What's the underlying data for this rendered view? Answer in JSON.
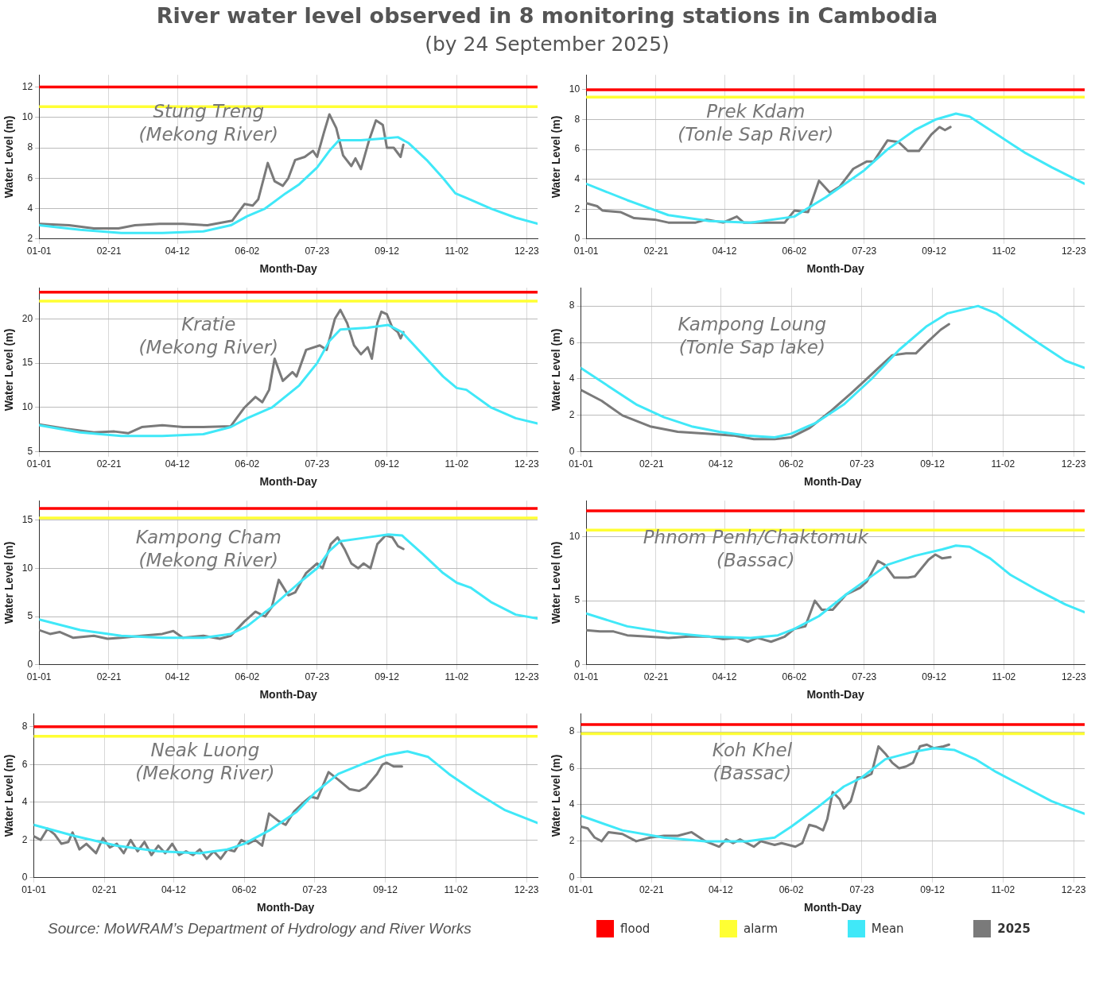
{
  "chart_data": [
    {
      "type": "other",
      "title": "River water level observed in 8 monitoring stations in Cambodia",
      "subtitle": "(by 24 September 2025)"
    },
    {
      "type": "line",
      "title": "Stung Treng\n(Mekong River)",
      "xlabel": "Month-Day",
      "ylabel": "Water Level (m)",
      "xlim": [
        "2025-01-01",
        "2025-12-31"
      ],
      "xticks": [
        {
          "value": "2025-01-01",
          "label": "01-01"
        },
        {
          "value": "2025-02-21",
          "label": "02-21"
        },
        {
          "value": "2025-04-12",
          "label": "04-12"
        },
        {
          "value": "2025-06-02",
          "label": "06-02"
        },
        {
          "value": "2025-07-23",
          "label": "07-23"
        },
        {
          "value": "2025-09-12",
          "label": "09-12"
        },
        {
          "value": "2025-11-02",
          "label": "11-02"
        },
        {
          "value": "2025-12-23",
          "label": "12-23"
        }
      ],
      "ylim": [
        2,
        12.8
      ],
      "yticks": [
        2,
        4,
        6,
        8,
        10,
        12
      ],
      "grid": true,
      "marker": "none",
      "line_style": "solid",
      "ref_lines": [
        {
          "axis": "y",
          "value": 12,
          "color": "#ff0000"
        },
        {
          "axis": "y",
          "value": 10.7,
          "color": "#ffff33"
        }
      ],
      "series": [
        {
          "color": "#40e8f8",
          "x": [
            "2025-01-01",
            "2025-01-31",
            "2025-03-02",
            "2025-04-01",
            "2025-05-01",
            "2025-05-21",
            "2025-06-02",
            "2025-06-15",
            "2025-06-30",
            "2025-07-10",
            "2025-07-23",
            "2025-08-01",
            "2025-08-08",
            "2025-08-24",
            "2025-09-08",
            "2025-09-20",
            "2025-09-28",
            "2025-10-11",
            "2025-10-23",
            "2025-11-01",
            "2025-11-09",
            "2025-11-27",
            "2025-12-15",
            "2025-12-31"
          ],
          "values": [
            2.9,
            2.6,
            2.4,
            2.4,
            2.5,
            2.9,
            3.5,
            4.0,
            5.0,
            5.6,
            6.7,
            7.8,
            8.5,
            8.5,
            8.6,
            8.7,
            8.3,
            7.2,
            6.0,
            5.0,
            4.7,
            4.0,
            3.4,
            3.0
          ]
        },
        {
          "color": "#7a7a7a",
          "x": [
            "2025-01-01",
            "2025-01-23",
            "2025-02-10",
            "2025-02-28",
            "2025-03-12",
            "2025-03-30",
            "2025-04-16",
            "2025-05-04",
            "2025-05-22",
            "2025-05-31",
            "2025-06-06",
            "2025-06-10",
            "2025-06-17",
            "2025-06-22",
            "2025-06-28",
            "2025-07-02",
            "2025-07-07",
            "2025-07-14",
            "2025-07-20",
            "2025-07-23",
            "2025-07-28",
            "2025-08-01",
            "2025-08-06",
            "2025-08-11",
            "2025-08-17",
            "2025-08-20",
            "2025-08-24",
            "2025-08-30",
            "2025-09-04",
            "2025-09-09",
            "2025-09-12",
            "2025-09-17",
            "2025-09-22",
            "2025-09-24"
          ],
          "values": [
            3.0,
            2.9,
            2.7,
            2.7,
            2.9,
            3.0,
            3.0,
            2.9,
            3.2,
            4.3,
            4.2,
            4.6,
            7.0,
            5.8,
            5.5,
            6.0,
            7.2,
            7.4,
            7.8,
            7.4,
            9.0,
            10.2,
            9.3,
            7.5,
            6.8,
            7.3,
            6.6,
            8.5,
            9.8,
            9.5,
            8.0,
            8.0,
            7.4,
            8.2
          ]
        }
      ]
    },
    {
      "type": "line",
      "title": "Prek Kdam\n(Tonle Sap River)",
      "xlabel": "Month-Day",
      "ylabel": "Water Level (m)",
      "xlim": [
        "2025-01-01",
        "2025-12-31"
      ],
      "xticks": [
        {
          "value": "2025-01-01",
          "label": "01-01"
        },
        {
          "value": "2025-02-21",
          "label": "02-21"
        },
        {
          "value": "2025-04-12",
          "label": "04-12"
        },
        {
          "value": "2025-06-02",
          "label": "06-02"
        },
        {
          "value": "2025-07-23",
          "label": "07-23"
        },
        {
          "value": "2025-09-12",
          "label": "09-12"
        },
        {
          "value": "2025-11-02",
          "label": "11-02"
        },
        {
          "value": "2025-12-23",
          "label": "12-23"
        }
      ],
      "ylim": [
        0,
        11
      ],
      "yticks": [
        0,
        2,
        4,
        6,
        8,
        10
      ],
      "grid": true,
      "marker": "none",
      "line_style": "solid",
      "ref_lines": [
        {
          "axis": "y",
          "value": 10,
          "color": "#ff0000"
        },
        {
          "axis": "y",
          "value": 9.5,
          "color": "#ffff33"
        }
      ],
      "series": [
        {
          "color": "#40e8f8",
          "x": [
            "2025-01-01",
            "2025-01-31",
            "2025-03-02",
            "2025-04-01",
            "2025-05-01",
            "2025-06-02",
            "2025-06-25",
            "2025-07-23",
            "2025-08-09",
            "2025-08-29",
            "2025-09-13",
            "2025-09-28",
            "2025-10-08",
            "2025-10-28",
            "2025-11-17",
            "2025-12-07",
            "2025-12-31"
          ],
          "values": [
            3.7,
            2.6,
            1.6,
            1.2,
            1.1,
            1.5,
            2.8,
            4.6,
            6.0,
            7.3,
            8.0,
            8.4,
            8.2,
            7.0,
            5.8,
            4.8,
            3.7
          ]
        },
        {
          "color": "#7a7a7a",
          "x": [
            "2025-01-01",
            "2025-01-09",
            "2025-01-13",
            "2025-01-26",
            "2025-02-05",
            "2025-02-20",
            "2025-03-02",
            "2025-03-22",
            "2025-03-30",
            "2025-04-11",
            "2025-04-21",
            "2025-04-26",
            "2025-05-11",
            "2025-05-26",
            "2025-06-02",
            "2025-06-12",
            "2025-06-20",
            "2025-06-28",
            "2025-07-05",
            "2025-07-15",
            "2025-07-25",
            "2025-07-30",
            "2025-08-09",
            "2025-08-17",
            "2025-08-24",
            "2025-09-01",
            "2025-09-10",
            "2025-09-16",
            "2025-09-20",
            "2025-09-24"
          ],
          "values": [
            2.4,
            2.2,
            1.9,
            1.8,
            1.4,
            1.3,
            1.1,
            1.1,
            1.3,
            1.1,
            1.5,
            1.1,
            1.1,
            1.1,
            1.9,
            1.8,
            3.9,
            3.1,
            3.5,
            4.7,
            5.2,
            5.2,
            6.6,
            6.5,
            5.9,
            5.9,
            7.0,
            7.5,
            7.3,
            7.5
          ]
        }
      ]
    },
    {
      "type": "line",
      "title": "Kratie\n(Mekong River)",
      "xlabel": "Month-Day",
      "ylabel": "Water Level (m)",
      "xlim": [
        "2025-01-01",
        "2025-12-31"
      ],
      "xticks": [
        {
          "value": "2025-01-01",
          "label": "01-01"
        },
        {
          "value": "2025-02-21",
          "label": "02-21"
        },
        {
          "value": "2025-04-12",
          "label": "04-12"
        },
        {
          "value": "2025-06-02",
          "label": "06-02"
        },
        {
          "value": "2025-07-23",
          "label": "07-23"
        },
        {
          "value": "2025-09-12",
          "label": "09-12"
        },
        {
          "value": "2025-11-02",
          "label": "11-02"
        },
        {
          "value": "2025-12-23",
          "label": "12-23"
        }
      ],
      "ylim": [
        5,
        23.5
      ],
      "yticks": [
        5,
        10,
        15,
        20
      ],
      "grid": true,
      "marker": "none",
      "line_style": "solid",
      "ref_lines": [
        {
          "axis": "y",
          "value": 23,
          "color": "#ff0000"
        },
        {
          "axis": "y",
          "value": 22,
          "color": "#ffff33"
        }
      ],
      "series": [
        {
          "color": "#40e8f8",
          "x": [
            "2025-01-01",
            "2025-01-31",
            "2025-03-02",
            "2025-04-01",
            "2025-05-01",
            "2025-05-21",
            "2025-06-02",
            "2025-06-20",
            "2025-07-10",
            "2025-07-23",
            "2025-08-01",
            "2025-08-09",
            "2025-08-29",
            "2025-09-13",
            "2025-09-23",
            "2025-10-08",
            "2025-10-23",
            "2025-11-02",
            "2025-11-09",
            "2025-11-27",
            "2025-12-15",
            "2025-12-31"
          ],
          "values": [
            8.0,
            7.2,
            6.8,
            6.8,
            7.0,
            7.8,
            8.8,
            10.0,
            12.5,
            15.0,
            17.5,
            18.8,
            19.0,
            19.3,
            18.5,
            16.0,
            13.5,
            12.2,
            12.0,
            10.0,
            8.8,
            8.2
          ]
        },
        {
          "color": "#7a7a7a",
          "x": [
            "2025-01-01",
            "2025-01-21",
            "2025-02-10",
            "2025-02-25",
            "2025-03-07",
            "2025-03-17",
            "2025-04-01",
            "2025-04-16",
            "2025-05-01",
            "2025-05-21",
            "2025-05-31",
            "2025-06-08",
            "2025-06-13",
            "2025-06-18",
            "2025-06-22",
            "2025-06-28",
            "2025-07-05",
            "2025-07-08",
            "2025-07-15",
            "2025-07-25",
            "2025-07-30",
            "2025-08-05",
            "2025-08-09",
            "2025-08-14",
            "2025-08-19",
            "2025-08-24",
            "2025-08-29",
            "2025-09-01",
            "2025-09-05",
            "2025-09-08",
            "2025-09-12",
            "2025-09-16",
            "2025-09-20",
            "2025-09-22",
            "2025-09-24"
          ],
          "values": [
            8.1,
            7.6,
            7.2,
            7.3,
            7.1,
            7.8,
            8.0,
            7.8,
            7.8,
            7.9,
            10.0,
            11.2,
            10.6,
            12.0,
            15.5,
            13.0,
            14.0,
            13.5,
            16.5,
            17.0,
            16.5,
            20.0,
            21.0,
            19.5,
            17.0,
            16.0,
            16.8,
            15.5,
            19.5,
            20.8,
            20.5,
            19.0,
            18.5,
            17.8,
            18.5
          ]
        }
      ]
    },
    {
      "type": "line",
      "title": "Kampong Loung\n(Tonle Sap lake)",
      "xlabel": "Month-Day",
      "ylabel": "Water Level (m)",
      "xlim": [
        "2025-01-01",
        "2025-12-31"
      ],
      "xticks": [
        {
          "value": "2025-01-01",
          "label": "01-01"
        },
        {
          "value": "2025-02-21",
          "label": "02-21"
        },
        {
          "value": "2025-04-12",
          "label": "04-12"
        },
        {
          "value": "2025-06-02",
          "label": "06-02"
        },
        {
          "value": "2025-07-23",
          "label": "07-23"
        },
        {
          "value": "2025-09-12",
          "label": "09-12"
        },
        {
          "value": "2025-11-02",
          "label": "11-02"
        },
        {
          "value": "2025-12-23",
          "label": "12-23"
        }
      ],
      "ylim": [
        0,
        9
      ],
      "yticks": [
        0,
        2,
        4,
        6,
        8
      ],
      "grid": true,
      "marker": "none",
      "line_style": "solid",
      "series": [
        {
          "color": "#40e8f8",
          "x": [
            "2025-01-01",
            "2025-01-21",
            "2025-02-10",
            "2025-03-02",
            "2025-03-22",
            "2025-04-11",
            "2025-05-01",
            "2025-05-21",
            "2025-06-02",
            "2025-06-20",
            "2025-07-10",
            "2025-07-30",
            "2025-08-19",
            "2025-09-08",
            "2025-09-23",
            "2025-10-15",
            "2025-10-28",
            "2025-11-12",
            "2025-11-27",
            "2025-12-17",
            "2025-12-31"
          ],
          "values": [
            4.6,
            3.6,
            2.6,
            1.9,
            1.4,
            1.1,
            0.9,
            0.8,
            1.0,
            1.6,
            2.6,
            4.0,
            5.6,
            6.9,
            7.6,
            8.0,
            7.6,
            6.8,
            6.0,
            5.0,
            4.6
          ]
        },
        {
          "color": "#7a7a7a",
          "x": [
            "2025-01-01",
            "2025-01-16",
            "2025-01-31",
            "2025-02-20",
            "2025-03-12",
            "2025-04-01",
            "2025-04-21",
            "2025-05-06",
            "2025-05-21",
            "2025-06-02",
            "2025-06-15",
            "2025-06-30",
            "2025-07-15",
            "2025-07-25",
            "2025-08-04",
            "2025-08-14",
            "2025-08-24",
            "2025-08-31",
            "2025-09-08",
            "2025-09-18",
            "2025-09-24"
          ],
          "values": [
            3.4,
            2.8,
            2.0,
            1.4,
            1.1,
            1.0,
            0.9,
            0.7,
            0.7,
            0.8,
            1.3,
            2.2,
            3.2,
            3.9,
            4.6,
            5.3,
            5.4,
            5.4,
            6.0,
            6.7,
            7.0
          ]
        }
      ]
    },
    {
      "type": "line",
      "title": "Kampong Cham\n(Mekong River)",
      "xlabel": "Month-Day",
      "ylabel": "Water Level (m)",
      "xlim": [
        "2025-01-01",
        "2025-12-31"
      ],
      "xticks": [
        {
          "value": "2025-01-01",
          "label": "01-01"
        },
        {
          "value": "2025-02-21",
          "label": "02-21"
        },
        {
          "value": "2025-04-12",
          "label": "04-12"
        },
        {
          "value": "2025-06-02",
          "label": "06-02"
        },
        {
          "value": "2025-07-23",
          "label": "07-23"
        },
        {
          "value": "2025-09-12",
          "label": "09-12"
        },
        {
          "value": "2025-11-02",
          "label": "11-02"
        },
        {
          "value": "2025-12-23",
          "label": "12-23"
        }
      ],
      "ylim": [
        0,
        17
      ],
      "yticks": [
        0,
        5,
        10,
        15
      ],
      "grid": true,
      "marker": "none",
      "line_style": "solid",
      "ref_lines": [
        {
          "axis": "y",
          "value": 16.2,
          "color": "#ff0000"
        },
        {
          "axis": "y",
          "value": 15.2,
          "color": "#ffff33"
        }
      ],
      "series": [
        {
          "color": "#40e8f8",
          "x": [
            "2025-01-01",
            "2025-01-31",
            "2025-03-02",
            "2025-04-01",
            "2025-05-01",
            "2025-05-21",
            "2025-06-02",
            "2025-06-20",
            "2025-07-10",
            "2025-07-23",
            "2025-08-01",
            "2025-08-09",
            "2025-08-29",
            "2025-09-13",
            "2025-09-23",
            "2025-10-08",
            "2025-10-23",
            "2025-11-02",
            "2025-11-12",
            "2025-11-27",
            "2025-12-15",
            "2025-12-31"
          ],
          "values": [
            4.7,
            3.6,
            3.0,
            2.8,
            2.8,
            3.2,
            4.0,
            6.0,
            8.5,
            10.0,
            11.8,
            12.8,
            13.2,
            13.5,
            13.4,
            11.5,
            9.5,
            8.5,
            8.0,
            6.5,
            5.2,
            4.8
          ]
        },
        {
          "color": "#7a7a7a",
          "x": [
            "2025-01-01",
            "2025-01-09",
            "2025-01-16",
            "2025-01-26",
            "2025-02-10",
            "2025-02-20",
            "2025-03-02",
            "2025-03-17",
            "2025-04-01",
            "2025-04-09",
            "2025-04-16",
            "2025-05-01",
            "2025-05-13",
            "2025-05-21",
            "2025-05-31",
            "2025-06-08",
            "2025-06-15",
            "2025-06-20",
            "2025-06-25",
            "2025-07-02",
            "2025-07-07",
            "2025-07-15",
            "2025-07-23",
            "2025-07-27",
            "2025-08-02",
            "2025-08-07",
            "2025-08-12",
            "2025-08-17",
            "2025-08-22",
            "2025-08-26",
            "2025-08-31",
            "2025-09-05",
            "2025-09-11",
            "2025-09-16",
            "2025-09-20",
            "2025-09-24"
          ],
          "values": [
            3.6,
            3.2,
            3.4,
            2.8,
            3.0,
            2.7,
            2.8,
            3.0,
            3.2,
            3.5,
            2.8,
            3.0,
            2.7,
            3.0,
            4.5,
            5.5,
            5.0,
            6.0,
            8.8,
            7.2,
            7.5,
            9.5,
            10.5,
            10.0,
            12.5,
            13.2,
            12.0,
            10.5,
            10.0,
            10.5,
            10.0,
            12.5,
            13.4,
            13.2,
            12.3,
            12.0
          ]
        }
      ]
    },
    {
      "type": "line",
      "title": "Phnom Penh/Chaktomuk\n(Bassac)",
      "xlabel": "Month-Day",
      "ylabel": "Water Level (m)",
      "xlim": [
        "2025-01-01",
        "2025-12-31"
      ],
      "xticks": [
        {
          "value": "2025-01-01",
          "label": "01-01"
        },
        {
          "value": "2025-02-21",
          "label": "02-21"
        },
        {
          "value": "2025-04-12",
          "label": "04-12"
        },
        {
          "value": "2025-06-02",
          "label": "06-02"
        },
        {
          "value": "2025-07-23",
          "label": "07-23"
        },
        {
          "value": "2025-09-12",
          "label": "09-12"
        },
        {
          "value": "2025-11-02",
          "label": "11-02"
        },
        {
          "value": "2025-12-23",
          "label": "12-23"
        }
      ],
      "ylim": [
        0,
        12.8
      ],
      "yticks": [
        0,
        5,
        10
      ],
      "grid": true,
      "marker": "none",
      "line_style": "solid",
      "ref_lines": [
        {
          "axis": "y",
          "value": 12,
          "color": "#ff0000"
        },
        {
          "axis": "y",
          "value": 10.5,
          "color": "#ffff33"
        }
      ],
      "series": [
        {
          "color": "#40e8f8",
          "x": [
            "2025-01-01",
            "2025-01-31",
            "2025-03-02",
            "2025-04-01",
            "2025-05-01",
            "2025-05-21",
            "2025-06-02",
            "2025-06-20",
            "2025-07-10",
            "2025-07-23",
            "2025-08-09",
            "2025-08-29",
            "2025-09-18",
            "2025-09-28",
            "2025-10-08",
            "2025-10-23",
            "2025-11-07",
            "2025-11-27",
            "2025-12-17",
            "2025-12-31"
          ],
          "values": [
            4.0,
            3.0,
            2.5,
            2.2,
            2.1,
            2.3,
            2.8,
            3.8,
            5.5,
            6.5,
            7.8,
            8.5,
            9.0,
            9.3,
            9.2,
            8.3,
            7.0,
            5.8,
            4.7,
            4.1
          ]
        },
        {
          "color": "#7a7a7a",
          "x": [
            "2025-01-01",
            "2025-01-11",
            "2025-01-21",
            "2025-01-31",
            "2025-02-15",
            "2025-03-02",
            "2025-03-17",
            "2025-04-01",
            "2025-04-11",
            "2025-04-21",
            "2025-04-29",
            "2025-05-06",
            "2025-05-16",
            "2025-05-26",
            "2025-06-02",
            "2025-06-10",
            "2025-06-17",
            "2025-06-22",
            "2025-06-30",
            "2025-07-10",
            "2025-07-20",
            "2025-07-25",
            "2025-08-02",
            "2025-08-07",
            "2025-08-14",
            "2025-08-24",
            "2025-08-29",
            "2025-09-08",
            "2025-09-13",
            "2025-09-18",
            "2025-09-24"
          ],
          "values": [
            2.7,
            2.6,
            2.6,
            2.3,
            2.2,
            2.1,
            2.2,
            2.2,
            2.0,
            2.1,
            1.8,
            2.1,
            1.8,
            2.2,
            2.8,
            3.0,
            5.0,
            4.3,
            4.3,
            5.5,
            6.0,
            6.5,
            8.1,
            7.8,
            6.8,
            6.8,
            6.9,
            8.2,
            8.6,
            8.3,
            8.4
          ]
        }
      ]
    },
    {
      "type": "line",
      "title": "Neak Luong\n(Mekong River)",
      "xlabel": "Month-Day",
      "ylabel": "Water Level (m)",
      "annotations": [
        "Source: MoWRAM’s Department of Hydrology and River Works"
      ],
      "xlim": [
        "2025-01-01",
        "2025-12-31"
      ],
      "xticks": [
        {
          "value": "2025-01-01",
          "label": "01-01"
        },
        {
          "value": "2025-02-21",
          "label": "02-21"
        },
        {
          "value": "2025-04-12",
          "label": "04-12"
        },
        {
          "value": "2025-06-02",
          "label": "06-02"
        },
        {
          "value": "2025-07-23",
          "label": "07-23"
        },
        {
          "value": "2025-09-12",
          "label": "09-12"
        },
        {
          "value": "2025-11-02",
          "label": "11-02"
        },
        {
          "value": "2025-12-23",
          "label": "12-23"
        }
      ],
      "ylim": [
        0,
        8.7
      ],
      "yticks": [
        0,
        2,
        4,
        6,
        8
      ],
      "grid": true,
      "marker": "none",
      "line_style": "solid",
      "ref_lines": [
        {
          "axis": "y",
          "value": 8,
          "color": "#ff0000"
        },
        {
          "axis": "y",
          "value": 7.5,
          "color": "#ffff33"
        }
      ],
      "series": [
        {
          "color": "#40e8f8",
          "x": [
            "2025-01-01",
            "2025-01-31",
            "2025-03-02",
            "2025-04-01",
            "2025-05-01",
            "2025-05-21",
            "2025-06-02",
            "2025-06-20",
            "2025-07-10",
            "2025-07-23",
            "2025-08-09",
            "2025-08-29",
            "2025-09-13",
            "2025-09-28",
            "2025-10-13",
            "2025-10-28",
            "2025-11-17",
            "2025-12-07",
            "2025-12-31"
          ],
          "values": [
            2.8,
            2.2,
            1.7,
            1.4,
            1.3,
            1.5,
            1.8,
            2.5,
            3.5,
            4.5,
            5.5,
            6.1,
            6.5,
            6.7,
            6.4,
            5.5,
            4.5,
            3.6,
            2.9
          ]
        },
        {
          "color": "#7a7a7a",
          "x": [
            "2025-01-01",
            "2025-01-06",
            "2025-01-11",
            "2025-01-16",
            "2025-01-21",
            "2025-01-26",
            "2025-01-29",
            "2025-02-03",
            "2025-02-08",
            "2025-02-15",
            "2025-02-20",
            "2025-02-25",
            "2025-03-02",
            "2025-03-07",
            "2025-03-12",
            "2025-03-17",
            "2025-03-22",
            "2025-03-27",
            "2025-04-01",
            "2025-04-06",
            "2025-04-11",
            "2025-04-16",
            "2025-04-21",
            "2025-04-26",
            "2025-05-01",
            "2025-05-06",
            "2025-05-11",
            "2025-05-16",
            "2025-05-21",
            "2025-05-26",
            "2025-05-31",
            "2025-06-05",
            "2025-06-10",
            "2025-06-15",
            "2025-06-20",
            "2025-06-27",
            "2025-07-02",
            "2025-07-08",
            "2025-07-15",
            "2025-07-20",
            "2025-07-25",
            "2025-08-02",
            "2025-08-09",
            "2025-08-17",
            "2025-08-24",
            "2025-08-29",
            "2025-09-06",
            "2025-09-10",
            "2025-09-13",
            "2025-09-18",
            "2025-09-24"
          ],
          "values": [
            2.2,
            2.0,
            2.6,
            2.3,
            1.8,
            1.9,
            2.4,
            1.5,
            1.8,
            1.3,
            2.1,
            1.6,
            1.8,
            1.3,
            2.0,
            1.4,
            1.9,
            1.2,
            1.7,
            1.3,
            1.8,
            1.2,
            1.4,
            1.2,
            1.5,
            1.0,
            1.4,
            1.0,
            1.5,
            1.4,
            2.0,
            1.8,
            2.0,
            1.7,
            3.4,
            3.0,
            2.8,
            3.5,
            4.0,
            4.3,
            4.2,
            5.6,
            5.2,
            4.7,
            4.6,
            4.8,
            5.5,
            6.0,
            6.1,
            5.9,
            5.9
          ]
        }
      ]
    },
    {
      "type": "line",
      "title": "Koh Khel\n(Bassac)",
      "xlabel": "Month-Day",
      "ylabel": "Water Level (m)",
      "legend": "bottom",
      "xlim": [
        "2025-01-01",
        "2025-12-31"
      ],
      "xticks": [
        {
          "value": "2025-01-01",
          "label": "01-01"
        },
        {
          "value": "2025-02-21",
          "label": "02-21"
        },
        {
          "value": "2025-04-12",
          "label": "04-12"
        },
        {
          "value": "2025-06-02",
          "label": "06-02"
        },
        {
          "value": "2025-07-23",
          "label": "07-23"
        },
        {
          "value": "2025-09-12",
          "label": "09-12"
        },
        {
          "value": "2025-11-02",
          "label": "11-02"
        },
        {
          "value": "2025-12-23",
          "label": "12-23"
        }
      ],
      "ylim": [
        0,
        9
      ],
      "yticks": [
        0,
        2,
        4,
        6,
        8
      ],
      "grid": true,
      "marker": "none",
      "line_style": "solid",
      "ref_lines": [
        {
          "axis": "y",
          "value": 8.4,
          "color": "#ff0000",
          "label": "flood"
        },
        {
          "axis": "y",
          "value": 7.9,
          "color": "#ffff33",
          "label": "alarm"
        }
      ],
      "series": [
        {
          "name": "Mean",
          "color": "#40e8f8",
          "x": [
            "2025-01-01",
            "2025-01-31",
            "2025-03-02",
            "2025-04-01",
            "2025-05-01",
            "2025-05-21",
            "2025-06-02",
            "2025-06-20",
            "2025-07-10",
            "2025-07-23",
            "2025-08-09",
            "2025-08-29",
            "2025-09-13",
            "2025-09-28",
            "2025-10-13",
            "2025-10-28",
            "2025-11-17",
            "2025-12-07",
            "2025-12-31"
          ],
          "values": [
            3.4,
            2.6,
            2.2,
            2.0,
            2.0,
            2.2,
            2.8,
            3.8,
            5.0,
            5.5,
            6.5,
            6.9,
            7.1,
            7.0,
            6.5,
            5.8,
            5.0,
            4.2,
            3.5
          ]
        },
        {
          "name": "2025",
          "color": "#7a7a7a",
          "x": [
            "2025-01-01",
            "2025-01-06",
            "2025-01-11",
            "2025-01-16",
            "2025-01-21",
            "2025-01-31",
            "2025-02-10",
            "2025-02-20",
            "2025-03-02",
            "2025-03-12",
            "2025-03-22",
            "2025-04-01",
            "2025-04-11",
            "2025-04-16",
            "2025-04-21",
            "2025-04-26",
            "2025-05-06",
            "2025-05-11",
            "2025-05-21",
            "2025-05-26",
            "2025-06-05",
            "2025-06-10",
            "2025-06-15",
            "2025-06-20",
            "2025-06-25",
            "2025-06-28",
            "2025-07-02",
            "2025-07-07",
            "2025-07-10",
            "2025-07-15",
            "2025-07-20",
            "2025-07-25",
            "2025-07-30",
            "2025-08-04",
            "2025-08-09",
            "2025-08-14",
            "2025-08-19",
            "2025-08-24",
            "2025-08-29",
            "2025-09-03",
            "2025-09-08",
            "2025-09-13",
            "2025-09-20",
            "2025-09-24"
          ],
          "values": [
            2.8,
            2.7,
            2.2,
            2.0,
            2.5,
            2.4,
            2.0,
            2.2,
            2.3,
            2.3,
            2.5,
            2.0,
            1.7,
            2.1,
            1.9,
            2.1,
            1.7,
            2.0,
            1.8,
            1.9,
            1.7,
            1.9,
            2.9,
            2.8,
            2.6,
            3.2,
            4.7,
            4.3,
            3.8,
            4.2,
            5.5,
            5.5,
            5.7,
            7.2,
            6.8,
            6.3,
            6.0,
            6.1,
            6.3,
            7.2,
            7.3,
            7.1,
            7.2,
            7.3
          ]
        }
      ]
    }
  ]
}
